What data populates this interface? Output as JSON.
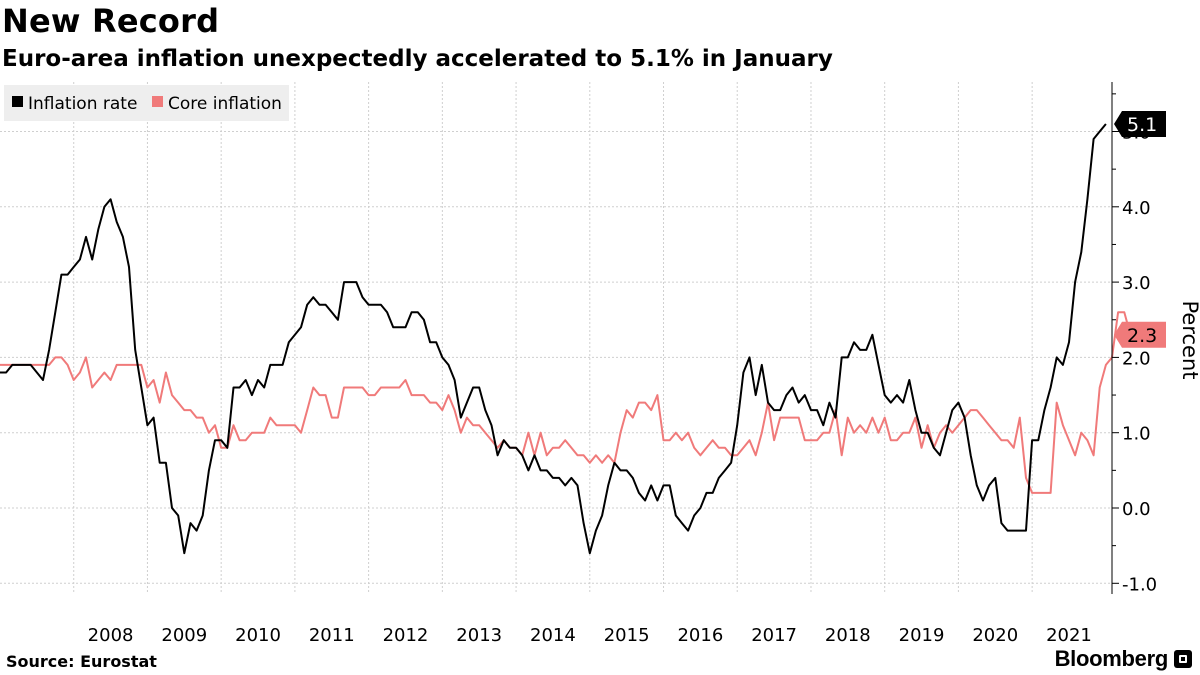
{
  "title": "New Record",
  "subtitle": "Euro-area inflation unexpectedly accelerated to 5.1% in January",
  "source": "Source: Eurostat",
  "brand": "Bloomberg",
  "colors": {
    "inflation": "#000000",
    "core": "#f07a7a",
    "grid": "#cfcfcf",
    "legend_bg": "#eeeeee"
  },
  "chart_data": {
    "type": "line",
    "title": "",
    "xlabel": "",
    "ylabel": "Percent",
    "ylim": [
      -1.1,
      5.8
    ],
    "y_ticks": [
      -1.0,
      0.0,
      1.0,
      2.0,
      3.0,
      4.0,
      5.0
    ],
    "y_tick_labels": [
      "-1.0",
      "0.0",
      "1.0",
      "2.0",
      "3.0",
      "4.0",
      "5.0"
    ],
    "x_range": [
      2007.0,
      2022.0833
    ],
    "x_ticks": [
      2008,
      2009,
      2010,
      2011,
      2012,
      2013,
      2014,
      2015,
      2016,
      2017,
      2018,
      2019,
      2020,
      2021
    ],
    "x_tick_labels": [
      "2008",
      "2009",
      "2010",
      "2011",
      "2012",
      "2013",
      "2014",
      "2015",
      "2016",
      "2017",
      "2018",
      "2019",
      "2020",
      "2021"
    ],
    "grid": true,
    "legend_position": "top-left",
    "x_start": "2007-01",
    "x_step": "month",
    "series": [
      {
        "name": "Inflation rate",
        "color": "#000000",
        "end_label": "5.1",
        "values": [
          1.8,
          1.8,
          1.9,
          1.9,
          1.9,
          1.9,
          1.8,
          1.7,
          2.1,
          2.6,
          3.1,
          3.1,
          3.2,
          3.3,
          3.6,
          3.3,
          3.7,
          4.0,
          4.1,
          3.8,
          3.6,
          3.2,
          2.1,
          1.6,
          1.1,
          1.2,
          0.6,
          0.6,
          0.0,
          -0.1,
          -0.6,
          -0.2,
          -0.3,
          -0.1,
          0.5,
          0.9,
          0.9,
          0.8,
          1.6,
          1.6,
          1.7,
          1.5,
          1.7,
          1.6,
          1.9,
          1.9,
          1.9,
          2.2,
          2.3,
          2.4,
          2.7,
          2.8,
          2.7,
          2.7,
          2.6,
          2.5,
          3.0,
          3.0,
          3.0,
          2.8,
          2.7,
          2.7,
          2.7,
          2.6,
          2.4,
          2.4,
          2.4,
          2.6,
          2.6,
          2.5,
          2.2,
          2.2,
          2.0,
          1.9,
          1.7,
          1.2,
          1.4,
          1.6,
          1.6,
          1.3,
          1.1,
          0.7,
          0.9,
          0.8,
          0.8,
          0.7,
          0.5,
          0.7,
          0.5,
          0.5,
          0.4,
          0.4,
          0.3,
          0.4,
          0.3,
          -0.2,
          -0.6,
          -0.3,
          -0.1,
          0.3,
          0.6,
          0.5,
          0.5,
          0.4,
          0.2,
          0.1,
          0.3,
          0.1,
          0.3,
          0.3,
          -0.1,
          -0.2,
          -0.3,
          -0.1,
          0.0,
          0.2,
          0.2,
          0.4,
          0.5,
          0.6,
          1.1,
          1.8,
          2.0,
          1.5,
          1.9,
          1.4,
          1.3,
          1.3,
          1.5,
          1.6,
          1.4,
          1.5,
          1.3,
          1.3,
          1.1,
          1.4,
          1.2,
          2.0,
          2.0,
          2.2,
          2.1,
          2.1,
          2.3,
          1.9,
          1.5,
          1.4,
          1.5,
          1.4,
          1.7,
          1.3,
          1.0,
          1.0,
          0.8,
          0.7,
          1.0,
          1.3,
          1.4,
          1.2,
          0.7,
          0.3,
          0.1,
          0.3,
          0.4,
          -0.2,
          -0.3,
          -0.3,
          -0.3,
          -0.3,
          0.9,
          0.9,
          1.3,
          1.6,
          2.0,
          1.9,
          2.2,
          3.0,
          3.4,
          4.1,
          4.9,
          5.0,
          5.1
        ]
      },
      {
        "name": "Core inflation",
        "color": "#f07a7a",
        "end_label": "2.3",
        "values": [
          1.9,
          1.9,
          1.9,
          1.9,
          1.9,
          1.9,
          1.9,
          1.9,
          1.9,
          2.0,
          2.0,
          1.9,
          1.7,
          1.8,
          2.0,
          1.6,
          1.7,
          1.8,
          1.7,
          1.9,
          1.9,
          1.9,
          1.9,
          1.9,
          1.6,
          1.7,
          1.4,
          1.8,
          1.5,
          1.4,
          1.3,
          1.3,
          1.2,
          1.2,
          1.0,
          1.1,
          0.8,
          0.8,
          1.1,
          0.9,
          0.9,
          1.0,
          1.0,
          1.0,
          1.2,
          1.1,
          1.1,
          1.1,
          1.1,
          1.0,
          1.3,
          1.6,
          1.5,
          1.5,
          1.2,
          1.2,
          1.6,
          1.6,
          1.6,
          1.6,
          1.5,
          1.5,
          1.6,
          1.6,
          1.6,
          1.6,
          1.7,
          1.5,
          1.5,
          1.5,
          1.4,
          1.4,
          1.3,
          1.5,
          1.3,
          1.0,
          1.2,
          1.1,
          1.1,
          1.0,
          0.9,
          0.8,
          0.9,
          0.8,
          0.8,
          0.7,
          1.0,
          0.7,
          1.0,
          0.7,
          0.8,
          0.8,
          0.9,
          0.8,
          0.7,
          0.7,
          0.6,
          0.7,
          0.6,
          0.7,
          0.6,
          1.0,
          1.3,
          1.2,
          1.4,
          1.4,
          1.3,
          1.5,
          0.9,
          0.9,
          1.0,
          0.9,
          1.0,
          0.8,
          0.7,
          0.8,
          0.9,
          0.8,
          0.8,
          0.7,
          0.7,
          0.8,
          0.9,
          0.7,
          1.0,
          1.4,
          0.9,
          1.2,
          1.2,
          1.2,
          1.2,
          0.9,
          0.9,
          0.9,
          1.0,
          1.0,
          1.3,
          0.7,
          1.2,
          1.0,
          1.1,
          1.0,
          1.2,
          1.0,
          1.2,
          0.9,
          0.9,
          1.0,
          1.0,
          1.2,
          0.8,
          1.1,
          0.8,
          1.0,
          1.1,
          1.0,
          1.1,
          1.2,
          1.3,
          1.3,
          1.2,
          1.1,
          1.0,
          0.9,
          0.9,
          0.8,
          1.2,
          0.4,
          0.2,
          0.2,
          0.2,
          0.2,
          1.4,
          1.1,
          0.9,
          0.7,
          1.0,
          0.9,
          0.7,
          1.6,
          1.9,
          2.0,
          2.6,
          2.6,
          2.3
        ]
      }
    ]
  }
}
